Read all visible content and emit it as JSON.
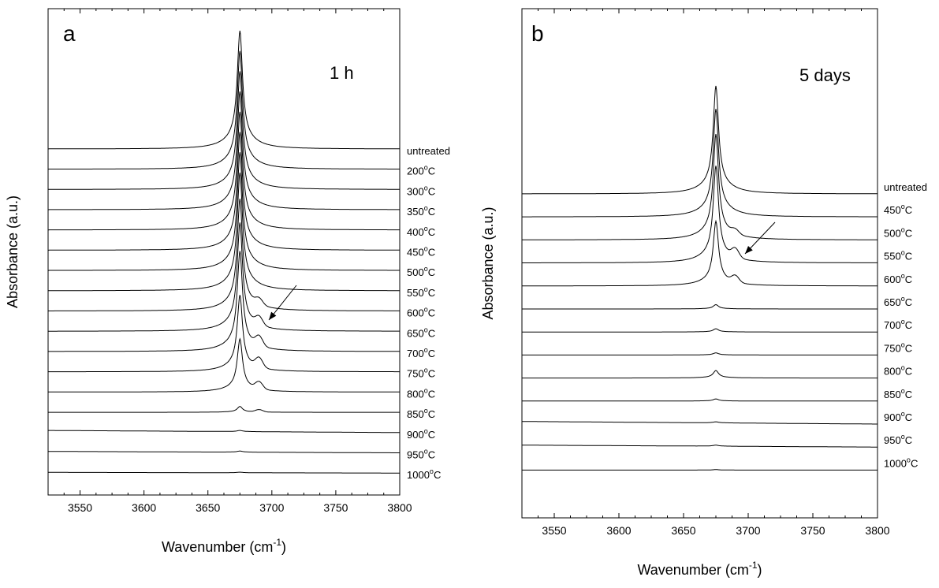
{
  "chart_data": [
    {
      "type": "line",
      "panel_label": "a",
      "annotation": "1 h",
      "xlabel": "Wavenumber (cm",
      "xlabel_sup": "-1",
      "xlabel_close": ")",
      "ylabel": "Absorbance (a.u.)",
      "xlim": [
        3525,
        3800
      ],
      "x_ticks": [
        3550,
        3600,
        3650,
        3700,
        3750,
        3800
      ],
      "y_ticks_shown": false,
      "grid": false,
      "peak_position": 3675,
      "series": [
        {
          "label": "untreated",
          "label_suffix": "",
          "peak": 1.0,
          "shoulder": 0.0,
          "trend": 0.0
        },
        {
          "label": "200",
          "label_suffix": "C",
          "peak": 1.0,
          "shoulder": 0.0,
          "trend": 0.0
        },
        {
          "label": "300",
          "label_suffix": "C",
          "peak": 1.0,
          "shoulder": 0.0,
          "trend": 0.0
        },
        {
          "label": "350",
          "label_suffix": "C",
          "peak": 1.0,
          "shoulder": 0.0,
          "trend": 0.0
        },
        {
          "label": "400",
          "label_suffix": "C",
          "peak": 1.0,
          "shoulder": 0.0,
          "trend": 0.0
        },
        {
          "label": "450",
          "label_suffix": "C",
          "peak": 1.0,
          "shoulder": 0.0,
          "trend": 0.0
        },
        {
          "label": "500",
          "label_suffix": "C",
          "peak": 1.0,
          "shoulder": 0.0,
          "trend": 0.0
        },
        {
          "label": "550",
          "label_suffix": "C",
          "peak": 1.0,
          "shoulder": 0.0,
          "trend": 0.0
        },
        {
          "label": "600",
          "label_suffix": "C",
          "peak": 0.95,
          "shoulder": 0.05,
          "trend": 0.0
        },
        {
          "label": "650",
          "label_suffix": "C",
          "peak": 0.92,
          "shoulder": 0.07,
          "trend": 0.0
        },
        {
          "label": "700",
          "label_suffix": "C",
          "peak": 0.85,
          "shoulder": 0.08,
          "trend": 0.0
        },
        {
          "label": "750",
          "label_suffix": "C",
          "peak": 0.65,
          "shoulder": 0.08,
          "trend": 0.0
        },
        {
          "label": "800",
          "label_suffix": "C",
          "peak": 0.45,
          "shoulder": 0.06,
          "trend": 0.0
        },
        {
          "label": "850",
          "label_suffix": "C",
          "peak": 0.05,
          "shoulder": 0.02,
          "trend": 0.0
        },
        {
          "label": "900",
          "label_suffix": "C",
          "peak": 0.01,
          "shoulder": 0.0,
          "trend": 0.03
        },
        {
          "label": "950",
          "label_suffix": "C",
          "peak": 0.01,
          "shoulder": 0.0,
          "trend": 0.02
        },
        {
          "label": "1000",
          "label_suffix": "C",
          "peak": 0.005,
          "shoulder": 0.0,
          "trend": 0.01
        }
      ]
    },
    {
      "type": "line",
      "panel_label": "b",
      "annotation": "5 days",
      "xlabel": "Wavenumber  (cm",
      "xlabel_sup": "-1",
      "xlabel_close": ")",
      "ylabel": "Absorbance (a.u.)",
      "xlim": [
        3525,
        3800
      ],
      "x_ticks": [
        3550,
        3600,
        3650,
        3700,
        3750,
        3800
      ],
      "y_ticks_shown": false,
      "grid": false,
      "peak_position": 3675,
      "series": [
        {
          "label": "untreated",
          "label_suffix": "",
          "peak": 1.0,
          "shoulder": 0.0,
          "trend": 0.0
        },
        {
          "label": "450",
          "label_suffix": "C",
          "peak": 1.0,
          "shoulder": 0.0,
          "trend": 0.0
        },
        {
          "label": "500",
          "label_suffix": "C",
          "peak": 0.98,
          "shoulder": 0.04,
          "trend": 0.0
        },
        {
          "label": "550",
          "label_suffix": "C",
          "peak": 0.9,
          "shoulder": 0.08,
          "trend": 0.0
        },
        {
          "label": "600",
          "label_suffix": "C",
          "peak": 0.6,
          "shoulder": 0.06,
          "trend": 0.0
        },
        {
          "label": "650",
          "label_suffix": "C",
          "peak": 0.04,
          "shoulder": 0.0,
          "trend": 0.0
        },
        {
          "label": "700",
          "label_suffix": "C",
          "peak": 0.03,
          "shoulder": 0.0,
          "trend": 0.0
        },
        {
          "label": "750",
          "label_suffix": "C",
          "peak": 0.02,
          "shoulder": 0.0,
          "trend": 0.0
        },
        {
          "label": "800",
          "label_suffix": "C",
          "peak": 0.07,
          "shoulder": 0.0,
          "trend": 0.0
        },
        {
          "label": "850",
          "label_suffix": "C",
          "peak": 0.02,
          "shoulder": 0.0,
          "trend": 0.0
        },
        {
          "label": "900",
          "label_suffix": "C",
          "peak": 0.01,
          "shoulder": 0.0,
          "trend": 0.04
        },
        {
          "label": "950",
          "label_suffix": "C",
          "peak": 0.01,
          "shoulder": 0.0,
          "trend": 0.03
        },
        {
          "label": "1000",
          "label_suffix": "C",
          "peak": 0.005,
          "shoulder": 0.0,
          "trend": 0.0
        }
      ]
    }
  ]
}
